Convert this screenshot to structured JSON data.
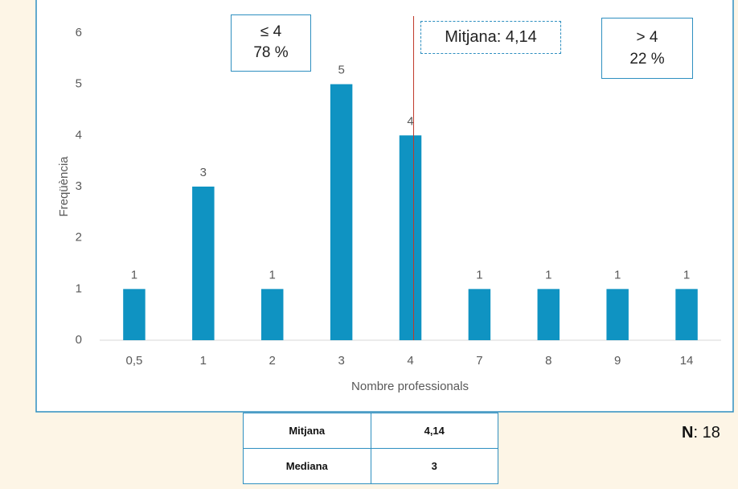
{
  "chart_data": {
    "type": "bar",
    "categories": [
      "0,5",
      "1",
      "2",
      "3",
      "4",
      "7",
      "8",
      "9",
      "14"
    ],
    "values": [
      1,
      3,
      1,
      5,
      4,
      1,
      1,
      1,
      1
    ],
    "color": "#0f93c2",
    "ylim": [
      0,
      6
    ],
    "yticks": [
      0,
      1,
      2,
      3,
      4,
      5,
      6
    ],
    "grid": false,
    "y_label": "Freqüència",
    "x_label": "Nombre professionals",
    "mean": 4.14,
    "annotations": {
      "left_top": "≤ 4",
      "left_bottom": "78 %",
      "mean": "Mitjana: 4,14",
      "right_top": "> 4",
      "right_bottom": "22 %"
    }
  },
  "table": {
    "rows": [
      [
        "Mitjana",
        "4,14"
      ],
      [
        "Mediana",
        "3"
      ]
    ]
  },
  "n": {
    "label": "N",
    "value": ": 18"
  }
}
